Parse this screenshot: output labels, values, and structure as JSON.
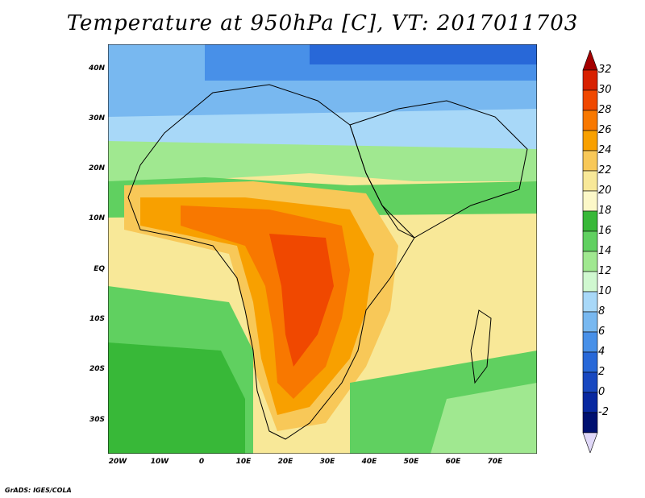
{
  "title": "Temperature at 950hPa [C], VT: 2017011703",
  "credit": "GrADS: IGES/COLA",
  "map": {
    "region": "Africa, Arabian Peninsula and western Indian Ocean",
    "y_ticks": [
      "40N",
      "30N",
      "20N",
      "10N",
      "EQ",
      "10S",
      "20S",
      "30S"
    ],
    "x_ticks": [
      "20W",
      "10W",
      "0",
      "10E",
      "20E",
      "30E",
      "40E",
      "50E",
      "60E",
      "70E"
    ]
  },
  "colorbar": {
    "labels": [
      "32",
      "30",
      "28",
      "26",
      "24",
      "22",
      "20",
      "18",
      "16",
      "14",
      "12",
      "10",
      "8",
      "6",
      "4",
      "2",
      "0",
      "-2"
    ],
    "colors": [
      "#a50000",
      "#d82000",
      "#f04800",
      "#f87800",
      "#f8a000",
      "#f8c858",
      "#f8e898",
      "#fcf8c8",
      "#38b838",
      "#60d060",
      "#a0e890",
      "#d0f8d0",
      "#a8d8f8",
      "#78b8f0",
      "#4890e8",
      "#2868d8",
      "#1848c0",
      "#0828a0",
      "#001070",
      "#e0d8f8"
    ]
  }
}
